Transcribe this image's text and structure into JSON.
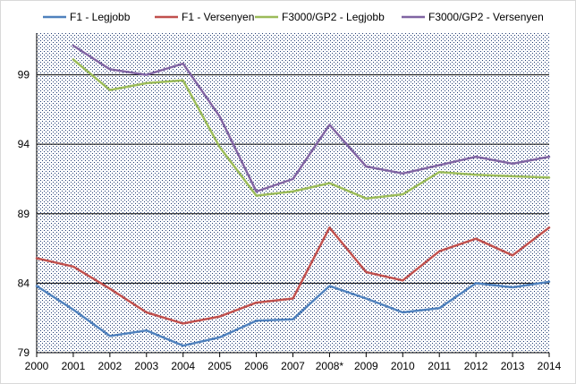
{
  "chart_data": {
    "type": "line",
    "title": "",
    "xlabel": "",
    "ylabel": "",
    "categories": [
      "2000",
      "2001",
      "2002",
      "2003",
      "2004",
      "2005",
      "2006",
      "2007",
      "2008*",
      "2009",
      "2010",
      "2011",
      "2012",
      "2013",
      "2014"
    ],
    "ylim": [
      79,
      102
    ],
    "yticks": [
      79,
      84,
      89,
      94,
      99
    ],
    "grid": true,
    "legend_position": "top",
    "series": [
      {
        "name": "F1 - Legjobb",
        "color": "#4F81BD",
        "values": [
          83.8,
          82.1,
          80.2,
          80.6,
          79.5,
          80.1,
          81.3,
          81.4,
          83.8,
          82.9,
          81.9,
          82.2,
          84.0,
          83.7,
          84.1
        ]
      },
      {
        "name": "F1 - Versenyen",
        "color": "#C0504D",
        "values": [
          85.8,
          85.2,
          83.6,
          81.9,
          81.1,
          81.6,
          82.6,
          82.9,
          88.0,
          84.8,
          84.2,
          86.3,
          87.2,
          86.0,
          88.0
        ]
      },
      {
        "name": "F3000/GP2 - Legjobb",
        "color": "#9BBB59",
        "values": [
          null,
          100.1,
          97.9,
          98.4,
          98.6,
          93.8,
          90.3,
          90.6,
          91.2,
          90.1,
          90.4,
          92.0,
          91.8,
          91.7,
          91.6
        ]
      },
      {
        "name": "F3000/GP2 - Versenyen",
        "color": "#8064A2",
        "values": [
          null,
          101.1,
          99.4,
          99.0,
          99.8,
          96.0,
          90.6,
          91.5,
          95.4,
          92.4,
          91.9,
          92.5,
          93.1,
          92.6,
          93.1
        ]
      }
    ]
  }
}
